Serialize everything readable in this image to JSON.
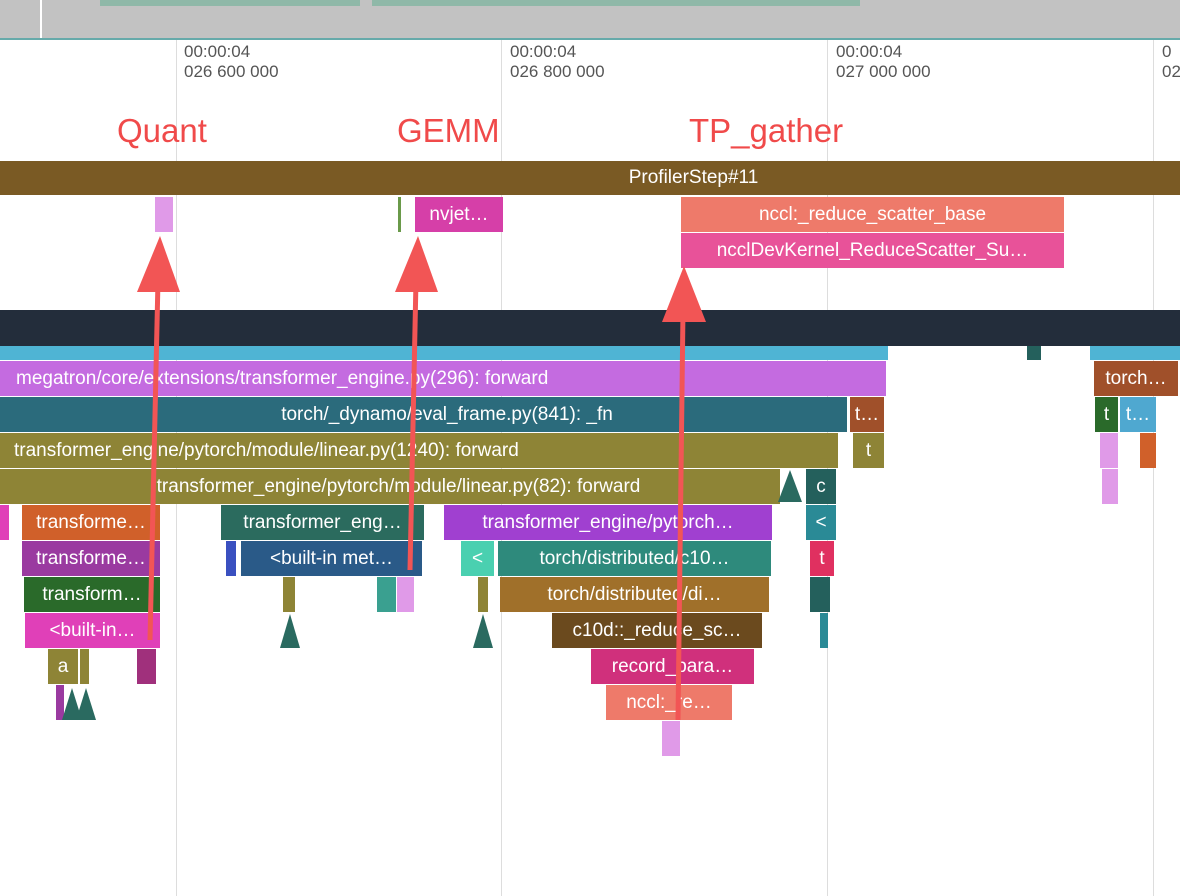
{
  "timeline": {
    "ticks": [
      {
        "time": "00:00:04",
        "offset": "026 600 000"
      },
      {
        "time": "00:00:04",
        "offset": "026 800 000"
      },
      {
        "time": "00:00:04",
        "offset": "027 000 000"
      },
      {
        "time": "0",
        "offset": "02"
      }
    ]
  },
  "annotations": [
    "Quant",
    "GEMM",
    "TP_gather"
  ],
  "slices": [
    "ProfilerStep#11",
    "nvjet…",
    "nccl:_reduce_scatter_base",
    "ncclDevKernel_ReduceScatter_Su…",
    "megatron/core/extensions/transformer_engine.py(296): forward",
    "torch…",
    "torch/_dynamo/eval_frame.py(841): _fn",
    "t…",
    "t",
    "t…",
    "transformer_engine/pytorch/module/linear.py(1240): forward",
    "t",
    "transformer_engine/pytorch/module/linear.py(82): forward",
    "c",
    "transforme…",
    "transformer_eng…",
    "transformer_engine/pytorch…",
    "<",
    "transforme…",
    "<built-in met…",
    "<",
    "torch/distributed/c10…",
    "t",
    "transform…",
    "torch/distributed/di…",
    "<built-in…",
    "c10d::_reduce_sc…",
    "a",
    "record_para…",
    "nccl:_re…"
  ]
}
